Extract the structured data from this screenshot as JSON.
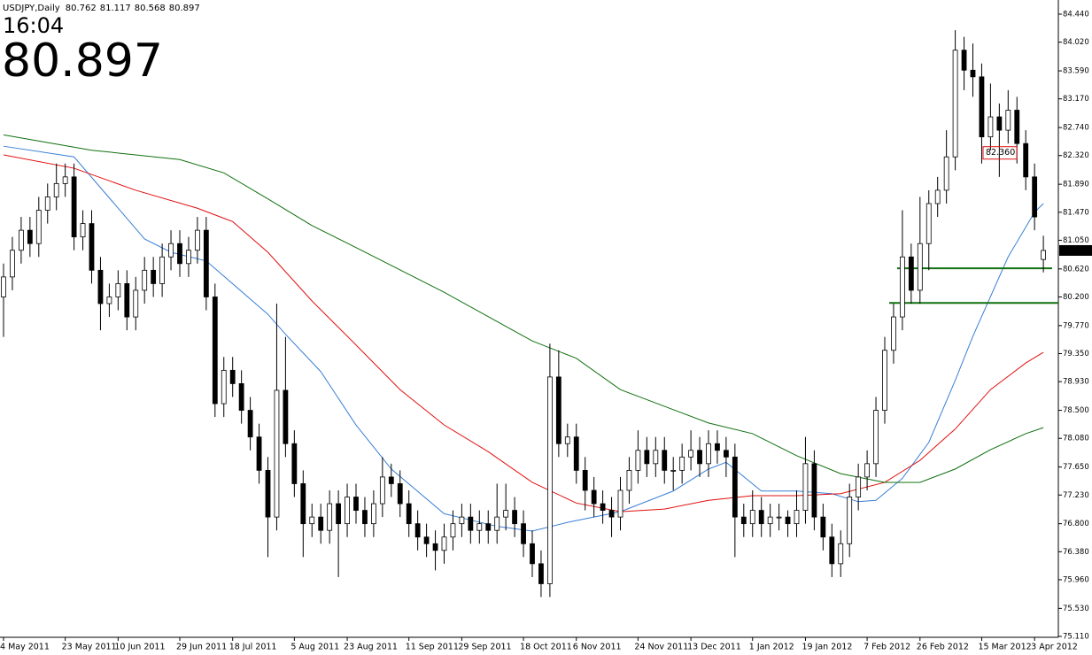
{
  "chart_data": {
    "type": "candlestick",
    "title": "USDJPY,Daily",
    "time": "16:04",
    "categories": [
      "4 May 2011",
      null,
      null,
      null,
      null,
      null,
      null,
      "23 May 2011",
      null,
      null,
      null,
      null,
      null,
      "10 Jun 2011",
      null,
      null,
      null,
      null,
      null,
      null,
      "29 Jun 2011",
      null,
      null,
      null,
      null,
      null,
      "18 Jul 2011",
      null,
      null,
      null,
      null,
      null,
      null,
      "5 Aug 2011",
      null,
      null,
      null,
      null,
      null,
      "23 Aug 2011",
      null,
      null,
      null,
      null,
      null,
      null,
      "11 Sep 2011",
      null,
      null,
      null,
      null,
      null,
      "29 Sep 2011",
      null,
      null,
      null,
      null,
      null,
      null,
      "18 Oct 2011",
      null,
      null,
      null,
      null,
      null,
      "6 Nov 2011",
      null,
      null,
      null,
      null,
      null,
      null,
      "24 Nov 2011",
      null,
      null,
      null,
      null,
      null,
      "13 Dec 2011",
      null,
      null,
      null,
      null,
      null,
      null,
      "1 Jan 2012",
      null,
      null,
      null,
      null,
      null,
      "19 Jan 2012",
      null,
      null,
      null,
      null,
      null,
      null,
      "7 Feb 2012",
      null,
      null,
      null,
      null,
      null,
      "26 Feb 2012",
      null,
      null,
      null,
      null,
      null,
      null,
      "15 Mar 2012",
      null,
      null,
      null,
      null,
      null,
      "3 Apr 2012",
      null
    ],
    "open": [
      80.2,
      80.5,
      80.9,
      81.2,
      81.0,
      81.5,
      81.7,
      81.9,
      82.0,
      81.1,
      81.3,
      80.6,
      80.1,
      80.2,
      80.4,
      79.9,
      80.3,
      80.6,
      80.4,
      80.8,
      81.0,
      80.7,
      80.9,
      81.2,
      80.2,
      78.6,
      79.1,
      78.9,
      78.5,
      78.1,
      77.6,
      76.9,
      78.8,
      78.0,
      77.4,
      76.8,
      76.9,
      76.7,
      77.1,
      76.8,
      77.2,
      77.0,
      76.8,
      77.1,
      77.5,
      77.4,
      77.1,
      76.8,
      76.6,
      76.5,
      76.4,
      76.6,
      76.8,
      76.9,
      76.7,
      76.8,
      76.7,
      76.9,
      77.0,
      76.8,
      76.5,
      76.2,
      75.9,
      79.0,
      78.0,
      78.1,
      77.6,
      77.3,
      77.1,
      77.0,
      76.9,
      77.3,
      77.6,
      77.9,
      77.7,
      77.9,
      77.6,
      77.6,
      77.8,
      77.9,
      77.7,
      78.0,
      77.9,
      77.8,
      76.9,
      76.8,
      77.0,
      76.8,
      76.9,
      76.9,
      76.8,
      77.0,
      77.7,
      76.9,
      76.6,
      76.2,
      76.5,
      77.2,
      77.5,
      77.7,
      78.5,
      79.4,
      79.9,
      80.8,
      80.3,
      81.0,
      81.6,
      81.8,
      82.3,
      83.9,
      83.6,
      83.5,
      82.6,
      82.9,
      82.7,
      83.0,
      82.5,
      82.0,
      80.762
    ],
    "high": [
      80.7,
      81.1,
      81.4,
      81.4,
      81.7,
      81.9,
      82.2,
      82.2,
      82.2,
      81.5,
      81.5,
      80.8,
      80.4,
      80.6,
      80.6,
      80.5,
      80.8,
      80.8,
      81.0,
      81.2,
      81.2,
      81.1,
      81.4,
      81.4,
      80.4,
      79.3,
      79.3,
      79.1,
      78.7,
      78.3,
      77.8,
      80.1,
      79.6,
      78.2,
      77.6,
      77.1,
      77.1,
      77.3,
      77.3,
      77.4,
      77.4,
      77.2,
      77.3,
      77.8,
      77.7,
      77.6,
      77.3,
      77.0,
      76.8,
      76.7,
      76.8,
      77.0,
      77.1,
      77.1,
      77.0,
      77.0,
      77.4,
      77.4,
      77.2,
      77.0,
      76.7,
      76.4,
      79.5,
      79.4,
      78.3,
      78.3,
      77.8,
      77.5,
      77.3,
      77.2,
      77.5,
      77.8,
      78.2,
      78.1,
      78.1,
      78.1,
      77.8,
      78.0,
      78.2,
      78.1,
      78.2,
      78.2,
      78.1,
      78.0,
      77.1,
      77.3,
      77.2,
      77.1,
      77.1,
      77.0,
      77.3,
      78.1,
      77.9,
      77.1,
      76.8,
      76.7,
      77.4,
      77.7,
      77.9,
      78.7,
      79.6,
      80.1,
      81.5,
      81.0,
      81.7,
      81.8,
      82.0,
      82.7,
      84.2,
      84.1,
      84.0,
      83.7,
      83.4,
      83.1,
      83.3,
      83.2,
      82.7,
      82.2,
      81.117
    ],
    "low": [
      79.6,
      80.3,
      80.7,
      80.8,
      80.8,
      81.3,
      81.5,
      81.7,
      80.9,
      80.9,
      80.4,
      79.7,
      79.9,
      80.0,
      79.7,
      79.7,
      80.1,
      80.2,
      80.2,
      80.6,
      80.5,
      80.5,
      80.7,
      80.0,
      78.4,
      78.4,
      78.7,
      78.3,
      77.9,
      77.4,
      76.3,
      76.7,
      77.8,
      77.2,
      76.3,
      76.6,
      76.5,
      76.5,
      76.0,
      76.6,
      76.8,
      76.6,
      76.6,
      76.9,
      77.2,
      76.9,
      76.6,
      76.4,
      76.3,
      76.1,
      76.2,
      76.4,
      76.6,
      76.5,
      76.5,
      76.5,
      76.5,
      76.7,
      76.6,
      76.3,
      76.0,
      75.7,
      75.7,
      77.8,
      77.8,
      77.4,
      77.0,
      76.9,
      76.8,
      76.6,
      76.7,
      77.1,
      77.4,
      77.5,
      77.5,
      77.4,
      77.3,
      77.4,
      77.6,
      77.5,
      77.5,
      77.7,
      77.5,
      76.3,
      76.6,
      76.6,
      76.6,
      76.6,
      76.7,
      76.6,
      76.6,
      76.8,
      76.7,
      76.4,
      76.0,
      76.0,
      76.3,
      77.0,
      77.3,
      77.5,
      78.3,
      79.2,
      79.7,
      80.1,
      80.1,
      80.6,
      81.4,
      81.6,
      82.1,
      83.3,
      83.2,
      82.2,
      82.4,
      82.0,
      82.5,
      82.2,
      81.8,
      81.2,
      80.568
    ],
    "close": [
      80.5,
      80.9,
      81.2,
      81.0,
      81.5,
      81.7,
      81.9,
      82.0,
      81.1,
      81.3,
      80.6,
      80.1,
      80.2,
      80.4,
      79.9,
      80.3,
      80.6,
      80.4,
      80.8,
      81.0,
      80.7,
      80.9,
      81.2,
      80.2,
      78.6,
      79.1,
      78.9,
      78.5,
      78.1,
      77.6,
      76.9,
      78.8,
      78.0,
      77.4,
      76.8,
      76.9,
      76.7,
      77.1,
      76.8,
      77.2,
      77.0,
      76.8,
      77.1,
      77.5,
      77.4,
      77.1,
      76.8,
      76.6,
      76.5,
      76.4,
      76.6,
      76.8,
      76.9,
      76.7,
      76.8,
      76.7,
      76.9,
      77.0,
      76.8,
      76.5,
      76.2,
      75.9,
      79.0,
      78.0,
      78.1,
      77.6,
      77.3,
      77.1,
      77.0,
      76.9,
      77.3,
      77.6,
      77.9,
      77.7,
      77.9,
      77.6,
      77.6,
      77.8,
      77.9,
      77.7,
      78.0,
      77.9,
      77.8,
      76.9,
      76.8,
      77.0,
      76.8,
      76.9,
      76.9,
      76.8,
      77.0,
      77.7,
      76.9,
      76.6,
      76.2,
      76.5,
      77.2,
      77.5,
      77.7,
      78.5,
      79.4,
      79.9,
      80.8,
      80.3,
      81.0,
      81.6,
      81.8,
      82.3,
      83.9,
      83.6,
      83.5,
      82.6,
      82.9,
      82.7,
      83.0,
      82.5,
      82.0,
      81.4,
      80.897
    ],
    "moving_averages": [
      {
        "color": "#3a7fd5",
        "x": [
          0,
          8,
          16,
          19,
          23,
          30,
          32,
          36,
          40,
          44,
          50,
          56,
          60,
          64,
          70,
          76,
          80,
          82,
          86,
          90,
          94,
          97,
          99,
          102,
          105,
          108,
          110,
          114,
          117,
          118
        ],
        "values": [
          82.46,
          82.3,
          81.07,
          80.87,
          80.74,
          79.94,
          79.64,
          79.08,
          78.28,
          77.62,
          76.95,
          76.76,
          76.69,
          76.82,
          76.98,
          77.29,
          77.62,
          77.72,
          77.29,
          77.29,
          77.25,
          77.13,
          77.15,
          77.48,
          78.02,
          78.95,
          79.61,
          80.8,
          81.47,
          81.6
        ]
      },
      {
        "color": "#e01010",
        "x": [
          0,
          8,
          15,
          22,
          26,
          30,
          35,
          40,
          45,
          50,
          55,
          60,
          65,
          70,
          75,
          80,
          85,
          90,
          95,
          100,
          104,
          108,
          112,
          116,
          118
        ],
        "values": [
          82.33,
          82.13,
          81.8,
          81.53,
          81.33,
          80.87,
          80.14,
          79.48,
          78.81,
          78.28,
          77.88,
          77.42,
          77.11,
          76.98,
          77.02,
          77.15,
          77.22,
          77.22,
          77.25,
          77.42,
          77.75,
          78.22,
          78.81,
          79.21,
          79.37
        ]
      },
      {
        "color": "#107010",
        "x": [
          0,
          10,
          20,
          25,
          30,
          35,
          40,
          50,
          60,
          65,
          70,
          80,
          85,
          90,
          95,
          100,
          104,
          108,
          112,
          116,
          118
        ],
        "values": [
          82.63,
          82.4,
          82.26,
          82.06,
          81.67,
          81.27,
          80.94,
          80.27,
          79.54,
          79.28,
          78.81,
          78.31,
          78.15,
          77.82,
          77.55,
          77.42,
          77.42,
          77.62,
          77.91,
          78.15,
          78.24
        ]
      }
    ],
    "levels": [
      {
        "value": 80.63,
        "color": "#107010"
      },
      {
        "value": 80.11,
        "color": "#107010"
      }
    ],
    "annotation": {
      "value": 82.36,
      "label": "82.360",
      "color": "#e01010"
    },
    "price_color": "#008000",
    "ylim": [
      75.11,
      84.44
    ],
    "yticks": [
      {
        "value": 84.44,
        "label": "84.440"
      },
      {
        "value": 84.02,
        "label": "84.020"
      },
      {
        "value": 83.59,
        "label": "83.590"
      },
      {
        "value": 83.17,
        "label": "83.170"
      },
      {
        "value": 82.74,
        "label": "82.740"
      },
      {
        "value": 82.32,
        "label": "82.320"
      },
      {
        "value": 81.89,
        "label": "81.890"
      },
      {
        "value": 81.47,
        "label": "81.470"
      },
      {
        "value": 81.05,
        "label": "81.050"
      },
      {
        "value": 80.62,
        "label": "80.620"
      },
      {
        "value": 80.2,
        "label": "80.200"
      },
      {
        "value": 79.77,
        "label": "79.770"
      },
      {
        "value": 79.35,
        "label": "79.350"
      },
      {
        "value": 78.93,
        "label": "78.930"
      },
      {
        "value": 78.5,
        "label": "78.500"
      },
      {
        "value": 78.08,
        "label": "78.080"
      },
      {
        "value": 77.65,
        "label": "77.650"
      },
      {
        "value": 77.23,
        "label": "77.230"
      },
      {
        "value": 76.8,
        "label": "76.800"
      },
      {
        "value": 76.38,
        "label": "76.380"
      },
      {
        "value": 75.96,
        "label": "75.960"
      },
      {
        "value": 75.53,
        "label": "75.530"
      },
      {
        "value": 75.11,
        "label": "75.110"
      }
    ]
  }
}
